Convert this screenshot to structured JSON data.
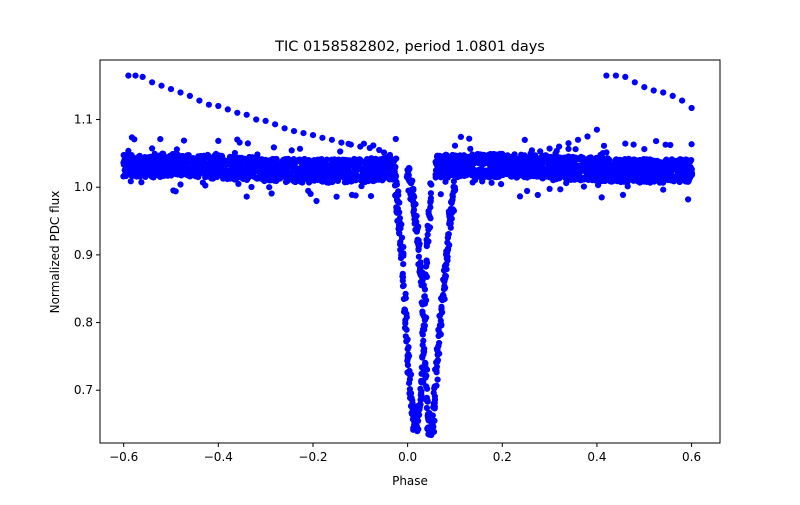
{
  "chart_data": {
    "type": "scatter",
    "title": "TIC 0158582802, period 1.0801 days",
    "xlabel": "Phase",
    "ylabel": "Normalized PDC flux",
    "xlim": [
      -0.65,
      0.66
    ],
    "ylim": [
      0.622,
      1.188
    ],
    "xticks": [
      -0.6,
      -0.4,
      -0.2,
      0.0,
      0.2,
      0.4,
      0.6
    ],
    "xtick_labels": [
      "−0.6",
      "−0.4",
      "−0.2",
      "0.0",
      "0.2",
      "0.4",
      "0.6"
    ],
    "yticks": [
      0.7,
      0.8,
      0.9,
      1.0,
      1.1
    ],
    "ytick_labels": [
      "0.7",
      "0.8",
      "0.9",
      "1.0",
      "1.1"
    ],
    "grid": false,
    "legend": null,
    "marker_color": "#0000ff",
    "upper_branch_left": {
      "x": [
        -0.59,
        -0.575,
        -0.56,
        -0.54,
        -0.52,
        -0.5,
        -0.48,
        -0.46,
        -0.44,
        -0.42,
        -0.4,
        -0.38,
        -0.36,
        -0.34,
        -0.32,
        -0.3,
        -0.28,
        -0.26,
        -0.24,
        -0.22,
        -0.2,
        -0.18,
        -0.16,
        -0.14,
        -0.12,
        -0.1,
        -0.08,
        -0.06
      ],
      "y": [
        1.165,
        1.165,
        1.163,
        1.155,
        1.15,
        1.145,
        1.14,
        1.135,
        1.128,
        1.122,
        1.12,
        1.115,
        1.11,
        1.107,
        1.1,
        1.098,
        1.093,
        1.087,
        1.083,
        1.08,
        1.077,
        1.073,
        1.07,
        1.066,
        1.063,
        1.06,
        1.058,
        1.055
      ]
    },
    "upper_branch_right": {
      "x": [
        0.06,
        0.08,
        0.1,
        0.12,
        0.14,
        0.16,
        0.18,
        0.2,
        0.22,
        0.24,
        0.26,
        0.28,
        0.3,
        0.32,
        0.34,
        0.36,
        0.38,
        0.4,
        0.42,
        0.44,
        0.46,
        0.48,
        0.5,
        0.52,
        0.54,
        0.56,
        0.58,
        0.6
      ],
      "y": [
        1.025,
        1.028,
        1.03,
        1.033,
        1.035,
        1.038,
        1.04,
        1.042,
        1.045,
        1.048,
        1.05,
        1.053,
        1.057,
        1.06,
        1.065,
        1.07,
        1.075,
        1.085,
        1.165,
        1.165,
        1.163,
        1.155,
        1.148,
        1.143,
        1.14,
        1.135,
        1.128,
        1.117
      ]
    },
    "eclipse_branch_1": {
      "x": [
        -0.025,
        -0.02,
        -0.015,
        -0.01,
        -0.005,
        0.0,
        0.005,
        0.01,
        0.015,
        0.02,
        0.025,
        0.03,
        0.035,
        0.04,
        0.045,
        0.05
      ],
      "y": [
        1.0,
        0.97,
        0.93,
        0.88,
        0.82,
        0.76,
        0.71,
        0.67,
        0.645,
        0.65,
        0.68,
        0.72,
        0.8,
        0.88,
        0.95,
        1.0
      ]
    },
    "eclipse_branch_2": {
      "x": [
        0.0,
        0.01,
        0.02,
        0.03,
        0.035,
        0.04,
        0.045,
        0.05,
        0.055,
        0.06,
        0.07,
        0.08,
        0.09,
        0.1
      ],
      "y": [
        1.02,
        0.99,
        0.93,
        0.86,
        0.78,
        0.7,
        0.65,
        0.64,
        0.66,
        0.72,
        0.8,
        0.88,
        0.95,
        1.01
      ]
    }
  }
}
